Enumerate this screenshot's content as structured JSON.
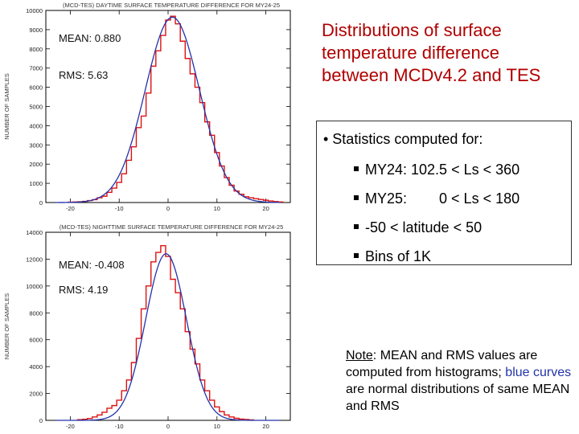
{
  "title": "Distributions of surface temperature difference between MCDv4.2 and TES",
  "stats": {
    "heading": "• Statistics computed for:",
    "items": [
      "MY24: 102.5 < Ls < 360",
      "MY25:        0 < Ls < 180",
      "-50 < latitude < 50",
      "Bins of 1K"
    ]
  },
  "note": {
    "label": "Note",
    "text1": ": MEAN and RMS values are computed from histograms; ",
    "blue": "blue curves",
    "text2": " are normal distributions of same MEAN and RMS"
  },
  "colors": {
    "histogram": "#dd1111",
    "normal_curve": "#2233aa",
    "title": "#b00000"
  },
  "chart_data": [
    {
      "type": "line",
      "title": "(MCD-TES) DAYTIME SURFACE TEMPERATURE DIFFERENCE FOR MY24-25",
      "xlabel": "",
      "ylabel": "NUMBER OF SAMPLES",
      "xlim": [
        -25,
        25
      ],
      "ylim": [
        0,
        10000
      ],
      "xticks": [
        -20,
        -10,
        0,
        10,
        20
      ],
      "yticks": [
        0,
        1000,
        2000,
        3000,
        4000,
        5000,
        6000,
        7000,
        8000,
        9000,
        10000
      ],
      "annotations": [
        "MEAN: 0.880",
        "RMS: 5.63"
      ],
      "mean": 0.88,
      "rms": 5.63,
      "series": [
        {
          "style": "histogram-step",
          "x": [
            -20,
            -19,
            -18,
            -17,
            -16,
            -15,
            -14,
            -13,
            -12,
            -11,
            -10,
            -9,
            -8,
            -7,
            -6,
            -5,
            -4,
            -3,
            -2,
            -1,
            0,
            1,
            2,
            3,
            4,
            5,
            6,
            7,
            8,
            9,
            10,
            11,
            12,
            13,
            14,
            15,
            16,
            17,
            18,
            19,
            20,
            21,
            22,
            23
          ],
          "values": [
            20,
            30,
            40,
            60,
            100,
            150,
            250,
            330,
            530,
            750,
            1050,
            1500,
            2200,
            2900,
            3900,
            4500,
            5700,
            7100,
            7900,
            8700,
            9500,
            9700,
            9300,
            8400,
            7500,
            6700,
            6000,
            5200,
            4200,
            3500,
            2600,
            1900,
            1300,
            900,
            600,
            430,
            300,
            250,
            200,
            160,
            120,
            80,
            50,
            30
          ]
        },
        {
          "style": "normal-curve",
          "mean": 0.88,
          "sigma": 5.56,
          "peak": 9650
        }
      ]
    },
    {
      "type": "line",
      "title": "(MCD-TES) NIGHTTIME SURFACE TEMPERATURE DIFFERENCE FOR MY24-25",
      "xlabel": "",
      "ylabel": "NUMBER OF SAMPLES",
      "xlim": [
        -25,
        25
      ],
      "ylim": [
        0,
        14000
      ],
      "xticks": [
        -20,
        -10,
        0,
        10,
        20
      ],
      "yticks": [
        0,
        2000,
        4000,
        6000,
        8000,
        10000,
        12000,
        14000
      ],
      "annotations": [
        "MEAN: -0.408",
        "RMS: 4.19"
      ],
      "mean": -0.408,
      "rms": 4.19,
      "series": [
        {
          "style": "histogram-step",
          "x": [
            -18,
            -17,
            -16,
            -15,
            -14,
            -13,
            -12,
            -11,
            -10,
            -9,
            -8,
            -7,
            -6,
            -5,
            -4,
            -3,
            -2,
            -1,
            0,
            1,
            2,
            3,
            4,
            5,
            6,
            7,
            8,
            9,
            10,
            11,
            12,
            13,
            14,
            15,
            16,
            17
          ],
          "values": [
            50,
            80,
            140,
            250,
            400,
            600,
            900,
            1100,
            1500,
            2200,
            3000,
            4300,
            6100,
            8300,
            10000,
            11800,
            12500,
            13000,
            12200,
            10500,
            9500,
            8300,
            6600,
            5300,
            4200,
            3000,
            2200,
            1500,
            1000,
            650,
            400,
            250,
            150,
            90,
            60,
            30
          ]
        },
        {
          "style": "normal-curve",
          "mean": -0.408,
          "sigma": 4.17,
          "peak": 12400
        }
      ]
    }
  ]
}
